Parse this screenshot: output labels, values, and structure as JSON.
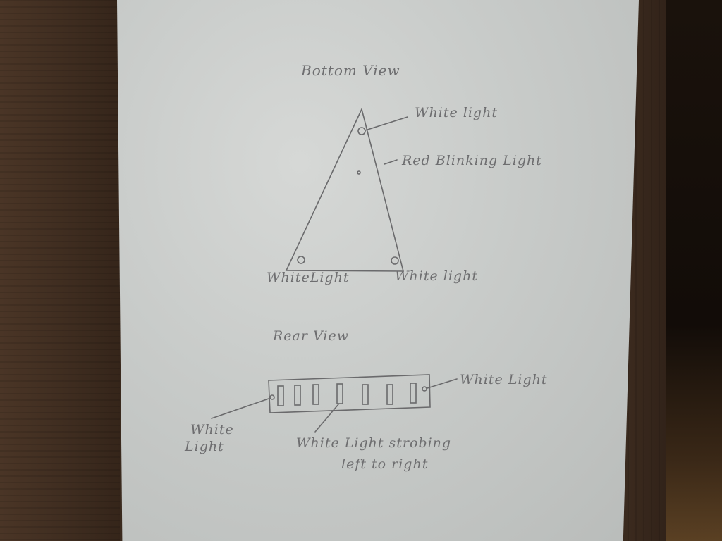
{
  "bottom_view": {
    "title": "Bottom View",
    "labels": {
      "top_light": "White light",
      "center_light": "Red Blinking Light",
      "left_light": "WhiteLight",
      "right_light": "White light"
    }
  },
  "rear_view": {
    "title": "Rear View",
    "labels": {
      "right_light": "White Light",
      "left_light_line1": "White",
      "left_light_line2": "Light",
      "strobe_line1": "White Light strobing",
      "strobe_line2": "left to right"
    }
  }
}
